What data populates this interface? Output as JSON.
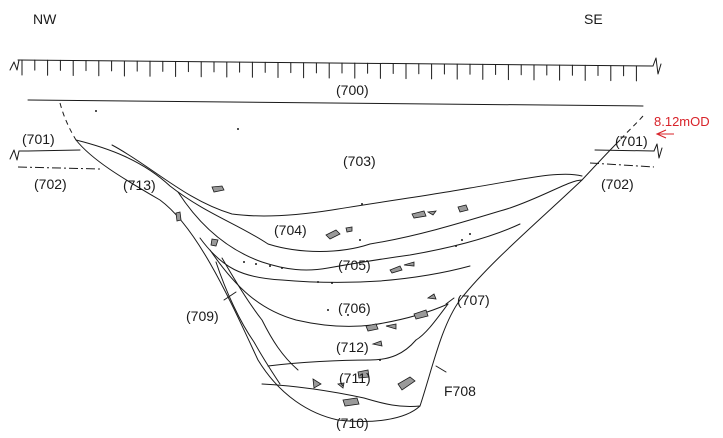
{
  "orientation": {
    "left": "NW",
    "right": "SE"
  },
  "contexts": [
    {
      "key": "c700",
      "label": "(700)"
    },
    {
      "key": "c701_left",
      "label": "(701)"
    },
    {
      "key": "c701_right",
      "label": "(701)"
    },
    {
      "key": "c702_left",
      "label": "(702)"
    },
    {
      "key": "c702_right",
      "label": "(702)"
    },
    {
      "key": "c703",
      "label": "(703)"
    },
    {
      "key": "c704",
      "label": "(704)"
    },
    {
      "key": "c705",
      "label": "(705)"
    },
    {
      "key": "c706",
      "label": "(706)"
    },
    {
      "key": "c707",
      "label": "(707)"
    },
    {
      "key": "c709",
      "label": "(709)"
    },
    {
      "key": "c710",
      "label": "(710)"
    },
    {
      "key": "c711",
      "label": "(711)"
    },
    {
      "key": "c712",
      "label": "(712)"
    },
    {
      "key": "c713",
      "label": "(713)"
    }
  ],
  "feature": {
    "label": "F708"
  },
  "datum": {
    "label": "8.12mOD",
    "color": "#d8232a"
  },
  "colors": {
    "line": "#1a1a1a",
    "stone_fill": "#9a9a9a",
    "datum": "#d8232a"
  }
}
